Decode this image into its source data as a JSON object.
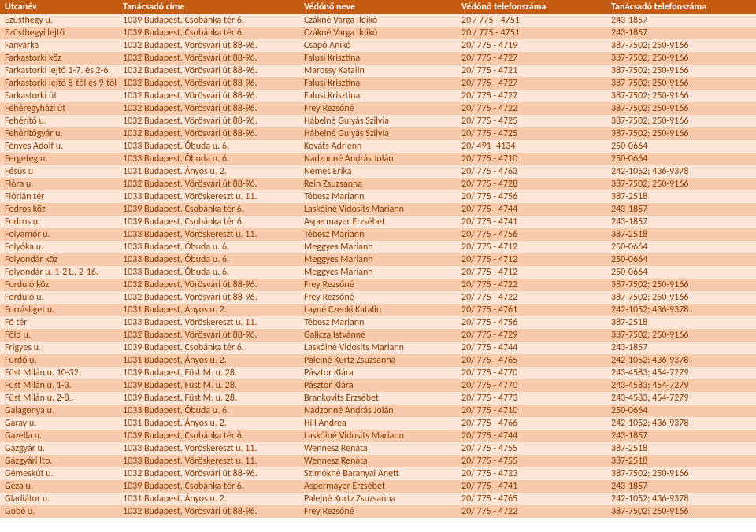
{
  "headers": [
    "Utcanév",
    "Tanácsadó címe",
    "Védőnő neve",
    "Védőnő telefonszáma",
    "Tanácsadó telefonszáma"
  ],
  "rows": [
    [
      "Ezüsthegy u.",
      "1039 Budapest, Csobánka tér 6.",
      "Czákné Varga Ildikó",
      "20 / 775 - 4751",
      "243-1857"
    ],
    [
      "Ezüsthegyi lejtő",
      "1039 Budapest, Csobánka tér 6.",
      "Czákné Varga Ildikó",
      "20 / 775 - 4751",
      "243-1857"
    ],
    [
      "Fanyarka",
      "1032 Budapest, Vörösvári út 88-96.",
      "Csapó Anikó",
      "20/ 775 - 4719",
      "387-7502; 250-9166"
    ],
    [
      "Farkastorki köz",
      "1032 Budapest, Vörösvári út 88-96.",
      "Falusi Krisztina",
      "20/ 775 - 4727",
      "387-7502; 250-9166"
    ],
    [
      "Farkastorki lejtő 1-7. és 2-6.",
      "1032 Budapest, Vörösvári út 88-96.",
      "Marossy Katalin",
      "20/ 775 - 4721",
      "387-7502; 250-9166"
    ],
    [
      "Farkastorki lejtő 8-tól és 9-től",
      "1032 Budapest, Vörösvári út 88-96.",
      "Falusi Krisztina",
      "20/ 775 - 4727",
      "387-7502; 250-9166"
    ],
    [
      "Farkastorki út",
      "1032 Budapest, Vörösvári út 88-96.",
      "Falusi Krisztina",
      "20/ 775 - 4727",
      "387-7502; 250-9166"
    ],
    [
      "Fehéregyházi út",
      "1032 Budapest, Vörösvári út 88-96.",
      "Frey Rezsőné",
      "20/ 775 - 4722",
      "387-7502; 250-9166"
    ],
    [
      "Fehérítő u.",
      "1032 Budapest, Vörösvári út 88-96.",
      "Hábelné Gulyás Szilvia",
      "20/ 775 - 4725",
      "387-7502; 250-9166"
    ],
    [
      "Fehérítőgyár u.",
      "1032 Budapest, Vörösvári út 88-96.",
      "Hábelné Gulyás Szilvia",
      "20/ 775 - 4725",
      "387-7502; 250-9166"
    ],
    [
      "Fényes Adolf u.",
      "1033 Budapest, Óbuda u. 6.",
      "Kováts Adrienn",
      "20/ 491- 4134",
      "250-0664"
    ],
    [
      "Fergeteg u.",
      "1033 Budapest, Óbuda u. 6.",
      "Nadzonné András Jolán",
      "20/ 775 - 4710",
      "250-0664"
    ],
    [
      "Fésűs u",
      "1031 Budapest, Ányos u. 2.",
      "Nemes Erika",
      "20/ 775 - 4763",
      "242-1052; 436-9378"
    ],
    [
      "Flóra u.",
      "1032 Budapest, Vörösvári út 88-96.",
      "Rein Zsuzsanna",
      "20/ 775 - 4728",
      "387-7502; 250-9166"
    ],
    [
      "Flórián tér",
      "1033 Budapest, Vöröskereszt u. 11.",
      "Tébesz Mariann",
      "20/ 775 - 4756",
      "387-2518"
    ],
    [
      "Fodros köz",
      "1039 Budapest, Csobánka tér 6.",
      " Laskóiné Vidosits Mariann",
      "20/ 775 - 4744",
      "243-1857"
    ],
    [
      "Fodros u.",
      "1039 Budapest, Csobánka tér 6.",
      "Aspermayer Erzsébet",
      "20/ 775 - 4741",
      "243-1857"
    ],
    [
      "Folyamőr u.",
      "1033 Budapest, Vöröskereszt u. 11.",
      "Tébesz Mariann",
      "20/ 775 - 4756",
      "387-2518"
    ],
    [
      "Folyóka u.",
      "1033 Budapest, Óbuda u. 6.",
      "Meggyes Mariann",
      "20/ 775 - 4712",
      "250-0664"
    ],
    [
      "Folyondár köz",
      "1033 Budapest, Óbuda u. 6.",
      "Meggyes Mariann",
      "20/ 775 - 4712",
      "250-0664"
    ],
    [
      "Folyondár u. 1-21., 2-16.",
      "1033 Budapest, Óbuda u. 6.",
      "Meggyes Mariann",
      "20/ 775 - 4712",
      "250-0664"
    ],
    [
      "Forduló köz",
      "1032 Budapest, Vörösvári út 88-96.",
      "Frey Rezsőné",
      "20/ 775 - 4722",
      "387-7502; 250-9166"
    ],
    [
      "Forduló u.",
      "1032 Budapest, Vörösvári út 88-96.",
      "Frey Rezsőné",
      "20/ 775 - 4722",
      "387-7502; 250-9166"
    ],
    [
      "Forrásliget u.",
      "1031 Budapest, Ányos u. 2.",
      "Layné Czenki Katalin",
      "20/ 775 - 4761",
      "242-1052; 436-9378"
    ],
    [
      "Fő tér",
      "1033 Budapest, Vöröskereszt u. 11.",
      "Tébesz Mariann",
      "20/ 775 - 4756",
      "387-2518"
    ],
    [
      "Föld u.",
      "1032 Budapest, Vörösvári út 88-96.",
      "Galicza Istvánné",
      "20/ 775 - 4729",
      "387-7502; 250-9166"
    ],
    [
      "Frigyes u.",
      "1039 Budapest, Csobánka tér 6.",
      " Laskóiné Vidosits Mariann",
      "20/ 775 - 4744",
      "243-1857"
    ],
    [
      "Fürdő u.",
      "1031 Budapest, Ányos u. 2.",
      "Palejné Kurtz Zsuzsanna",
      "20/ 775 - 4765",
      "242-1052; 436-9378"
    ],
    [
      "Füst Milán u. 10-32.",
      "1039 Budapest, Füst M. u. 28.",
      "Pásztor Klára",
      "20/ 775 - 4770",
      "243-4583; 454-7279"
    ],
    [
      "Füst Milán u. 1-3.",
      "1039 Budapest, Füst M. u. 28.",
      "Pásztor Klára",
      "20/ 775 - 4770",
      "243-4583; 454-7279"
    ],
    [
      "Füst Milán u. 2-8..",
      "1039 Budapest, Füst M. u. 28.",
      "Brankovits Erzsébet",
      "20/ 775 - 4773",
      "243-4583; 454-7279"
    ],
    [
      "Galagonya u.",
      "1033 Budapest, Óbuda u. 6.",
      "Nadzonné András Jolán",
      "20/ 775 - 4710",
      "250-0664"
    ],
    [
      "Garay u.",
      "1031 Budapest, Ányos u. 2.",
      "Hill Andrea",
      "20/ 775 - 4766",
      "242-1052; 436-9378"
    ],
    [
      "Gazella u.",
      "1039 Budapest, Csobánka tér 6.",
      " Laskóiné Vidosits Mariann",
      "20/ 775 - 4744",
      "243-1857"
    ],
    [
      "Gázgyár u.",
      "1033 Budapest, Vöröskereszt u. 11.",
      "Wennesz Renáta",
      "20/ 775 - 4755",
      "387-2518"
    ],
    [
      "Gázgyári ltp.",
      "1033 Budapest, Vöröskereszt u. 11.",
      "Wennesz Renáta",
      "20/ 775 - 4755",
      "387-2518"
    ],
    [
      "Gémeskút u.",
      "1032 Budapest, Vörösvári út 88-96.",
      "Szimókné Baranyai Anett",
      "20/ 775 - 4723",
      "387-7502; 250-9166"
    ],
    [
      "Géza u.",
      "1039 Budapest, Csobánka tér 6.",
      "Aspermayer Erzsébet",
      "20/ 775 - 4741",
      "243-1857"
    ],
    [
      "Gladiátor u.",
      "1031 Budapest, Ányos u. 2.",
      "Palejné Kurtz Zsuzsanna",
      "20/ 775 - 4765",
      "242-1052; 436-9378"
    ],
    [
      "Gobé u.",
      "1032 Budapest, Vörösvári út 88-96.",
      "Frey Rezsőné",
      "20/ 775 - 4722",
      "387-7502; 250-9166"
    ]
  ]
}
